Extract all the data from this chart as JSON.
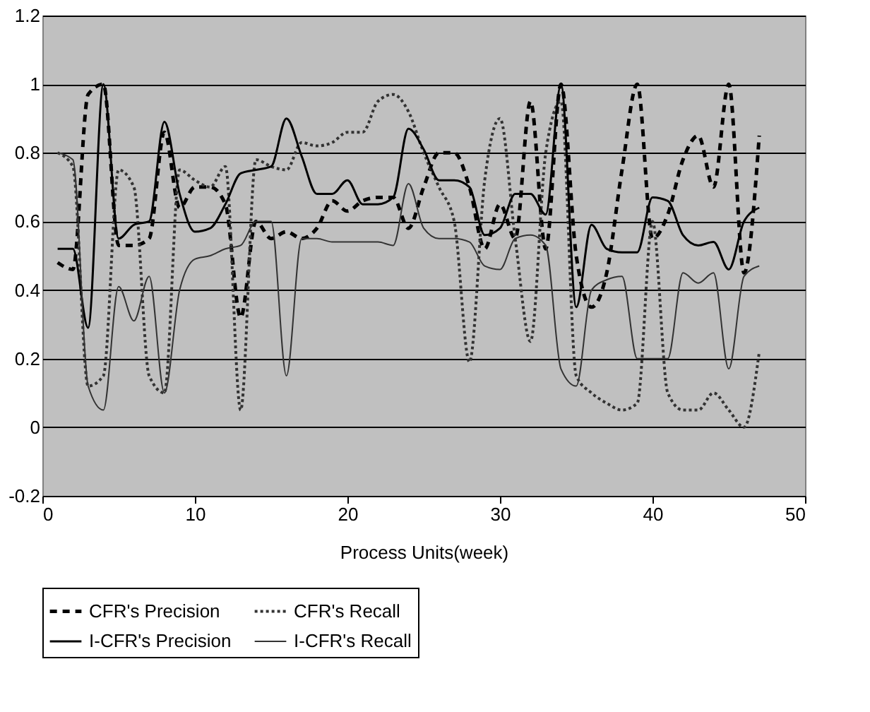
{
  "chart_data": {
    "type": "line",
    "xlabel": "Process Units(week)",
    "x": [
      1,
      2,
      3,
      4,
      5,
      6,
      7,
      8,
      9,
      10,
      11,
      12,
      13,
      14,
      15,
      16,
      17,
      18,
      19,
      20,
      21,
      22,
      23,
      24,
      25,
      26,
      27,
      28,
      29,
      30,
      31,
      32,
      33,
      34,
      35,
      36,
      37,
      38,
      39,
      40,
      41,
      42,
      43,
      44,
      45,
      46,
      47
    ],
    "series": [
      {
        "name": "CFR's Precision",
        "color": "#000000",
        "line_style": "dashed",
        "values": [
          0.48,
          0.46,
          0.97,
          1.0,
          0.53,
          0.53,
          0.55,
          0.86,
          0.64,
          0.7,
          0.7,
          0.65,
          0.32,
          0.6,
          0.55,
          0.57,
          0.55,
          0.58,
          0.66,
          0.63,
          0.66,
          0.67,
          0.67,
          0.58,
          0.7,
          0.8,
          0.8,
          0.7,
          0.52,
          0.65,
          0.55,
          0.95,
          0.52,
          1.0,
          0.5,
          0.35,
          0.45,
          0.75,
          1.0,
          0.55,
          0.62,
          0.78,
          0.85,
          0.7,
          1.0,
          0.45,
          0.85
        ]
      },
      {
        "name": "CFR's Recall",
        "color": "#333333",
        "line_style": "dotted",
        "values": [
          0.8,
          0.76,
          0.12,
          0.15,
          0.75,
          0.7,
          0.15,
          0.1,
          0.75,
          0.72,
          0.7,
          0.76,
          0.05,
          0.78,
          0.76,
          0.75,
          0.83,
          0.82,
          0.83,
          0.86,
          0.86,
          0.95,
          0.97,
          0.92,
          0.8,
          0.7,
          0.6,
          0.19,
          0.72,
          0.9,
          0.55,
          0.25,
          0.8,
          0.95,
          0.15,
          0.1,
          0.07,
          0.05,
          0.07,
          0.6,
          0.1,
          0.05,
          0.05,
          0.1,
          0.05,
          0.0,
          0.22
        ]
      },
      {
        "name": "I-CFR's Precision",
        "color": "#000000",
        "line_style": "solid",
        "values": [
          0.52,
          0.52,
          0.29,
          1.0,
          0.55,
          0.59,
          0.6,
          0.89,
          0.68,
          0.57,
          0.58,
          0.65,
          0.74,
          0.75,
          0.76,
          0.9,
          0.79,
          0.68,
          0.68,
          0.72,
          0.65,
          0.65,
          0.67,
          0.87,
          0.81,
          0.72,
          0.72,
          0.7,
          0.56,
          0.58,
          0.68,
          0.68,
          0.62,
          1.0,
          0.35,
          0.59,
          0.52,
          0.51,
          0.51,
          0.67,
          0.66,
          0.56,
          0.53,
          0.54,
          0.46,
          0.6,
          0.64
        ]
      },
      {
        "name": "I-CFR's Recall",
        "color": "#333333",
        "line_style": "solid",
        "values": [
          0.8,
          0.78,
          0.12,
          0.05,
          0.41,
          0.31,
          0.44,
          0.1,
          0.4,
          0.49,
          0.5,
          0.52,
          0.53,
          0.6,
          0.6,
          0.15,
          0.55,
          0.55,
          0.54,
          0.54,
          0.54,
          0.54,
          0.53,
          0.71,
          0.58,
          0.55,
          0.55,
          0.54,
          0.47,
          0.46,
          0.55,
          0.56,
          0.53,
          0.17,
          0.12,
          0.4,
          0.43,
          0.44,
          0.2,
          0.2,
          0.2,
          0.45,
          0.42,
          0.45,
          0.17,
          0.44,
          0.47
        ]
      }
    ],
    "xlim": [
      0,
      50
    ],
    "xticks": [
      0,
      10,
      20,
      30,
      40,
      50
    ],
    "ylim": [
      -0.2,
      1.2
    ],
    "yticks": [
      -0.2,
      0,
      0.2,
      0.4,
      0.6,
      0.8,
      1,
      1.2
    ],
    "grid": "y",
    "legend": "bottom",
    "marker": "none"
  }
}
